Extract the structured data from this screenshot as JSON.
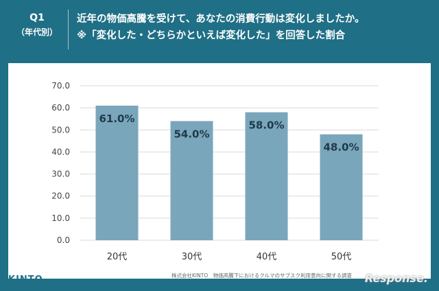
{
  "header": {
    "q_number": "Q1",
    "q_sub": "（年代別）",
    "title_line1": "近年の物価高騰を受けて、あなたの消費行動は変化しましたか。",
    "title_line2": "※「変化した・どちらかといえば変化した」を回答した割合"
  },
  "footer": {
    "logo": "KINTO",
    "note": "株式会社KINTO　物価高騰下におけるクルマのサブスク利用意向に関する調査",
    "watermark": "Response."
  },
  "colors": {
    "bar": "#7aa6bb",
    "header_bg": "#1f6f86",
    "grid": "#d9d9d9"
  },
  "chart_data": {
    "type": "bar",
    "categories": [
      "20代",
      "30代",
      "40代",
      "50代"
    ],
    "values": [
      61.0,
      54.0,
      58.0,
      48.0
    ],
    "value_labels": [
      "61.0%",
      "54.0%",
      "58.0%",
      "48.0%"
    ],
    "yticks": [
      "0.0",
      "10.0",
      "20.0",
      "30.0",
      "40.0",
      "50.0",
      "60.0",
      "70.0"
    ],
    "ylim": [
      0,
      70
    ],
    "grid": true
  }
}
